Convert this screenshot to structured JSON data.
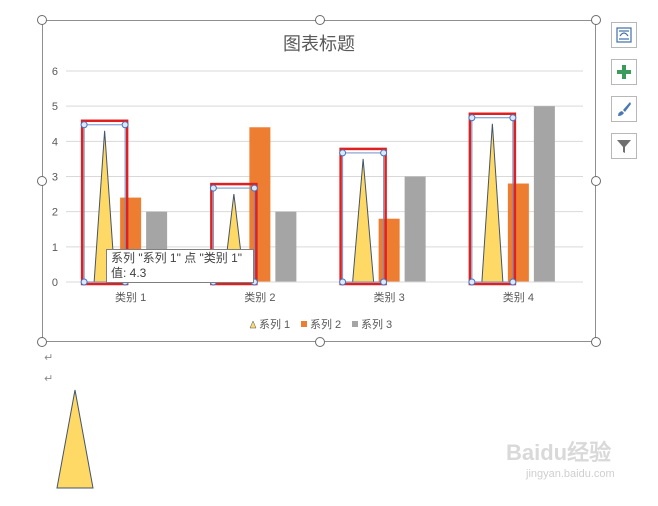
{
  "chart_data": {
    "type": "bar",
    "title": "图表标题",
    "categories": [
      "类别 1",
      "类别 2",
      "类别 3",
      "类别 4"
    ],
    "series": [
      {
        "name": "系列 1",
        "values": [
          4.3,
          2.5,
          3.5,
          4.5
        ],
        "color": "#FFD966",
        "shape": "triangle"
      },
      {
        "name": "系列 2",
        "values": [
          2.4,
          4.4,
          1.8,
          2.8
        ],
        "color": "#ED7D31"
      },
      {
        "name": "系列 3",
        "values": [
          2,
          2,
          3,
          5
        ],
        "color": "#A5A5A5"
      }
    ],
    "yticks": [
      0,
      1,
      2,
      3,
      4,
      5,
      6
    ],
    "ylim": [
      0,
      6
    ],
    "grid": true,
    "legend": "bottom"
  },
  "tooltip": {
    "line1": "系列 \"系列 1\" 点 \"类别 1\"",
    "line2": "值: 4.3"
  },
  "side_buttons": [
    "chart-layout-icon",
    "plus-icon",
    "paintbrush-icon",
    "filter-icon"
  ],
  "paragraph_mark": "↵",
  "watermark": {
    "brand": "Baidu经验",
    "url": "jingyan.baidu.com"
  }
}
